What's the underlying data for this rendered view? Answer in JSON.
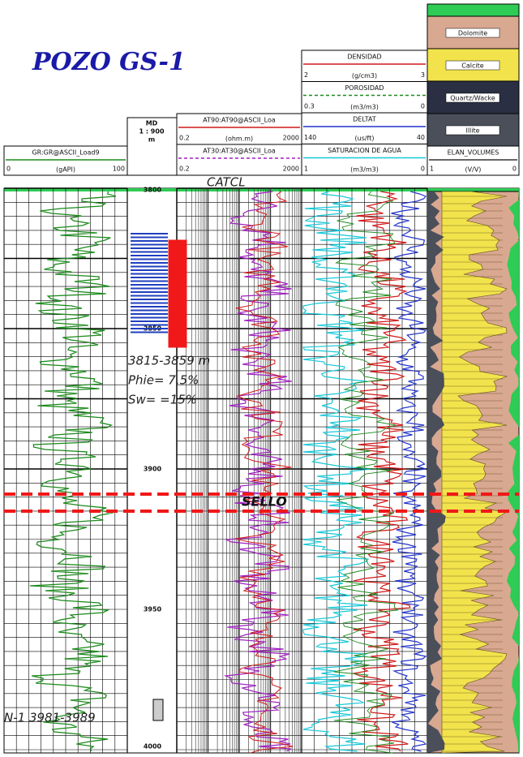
{
  "header": {
    "title": "POZO GS-1"
  },
  "gr_track": {
    "name": "GR:GR@ASCII_Load9",
    "min": "0",
    "unit": "(gAPI)",
    "max": "100"
  },
  "depth_track": {
    "md": "MD",
    "scale": "1 : 900",
    "unit": "m",
    "depths": [
      "3800",
      "3850",
      "3900",
      "3950",
      "4000"
    ]
  },
  "resistivity_track": {
    "curves": [
      {
        "name": "AT90:AT90@ASCII_Loa",
        "min": "0.2",
        "unit": "(ohm.m)",
        "max": "2000"
      },
      {
        "name": "AT30:AT30@ASCII_Loa",
        "min": "0.2",
        "max": "2000"
      }
    ]
  },
  "porosity_track": {
    "curves": [
      {
        "name": "DENSIDAD",
        "min": "2",
        "unit": "(g/cm3)",
        "max": "3"
      },
      {
        "name": "POROSIDAD",
        "min": "0.3",
        "unit": "(m3/m3)",
        "max": "0"
      },
      {
        "name": "DELTAT",
        "min": "140",
        "unit": "(us/ft)",
        "max": "40"
      },
      {
        "name": "SATURACION DE AGUA",
        "min": "1",
        "unit": "(m3/m3)",
        "max": "0"
      }
    ]
  },
  "elan_track": {
    "name": "ELAN_VOLUMES",
    "min": "1",
    "unit": "(V/V)",
    "max": "0",
    "legend": [
      "Dolomite",
      "Calcite",
      "Quartz/Wacke",
      "Illite"
    ]
  },
  "annotations": {
    "catcl": "CATCL",
    "interval": "3815-3859 m",
    "phie": "Phie= 7.5%",
    "sw": "Sw= =15%",
    "sello": "SELLO",
    "core": "N-1 3981-3989"
  }
}
